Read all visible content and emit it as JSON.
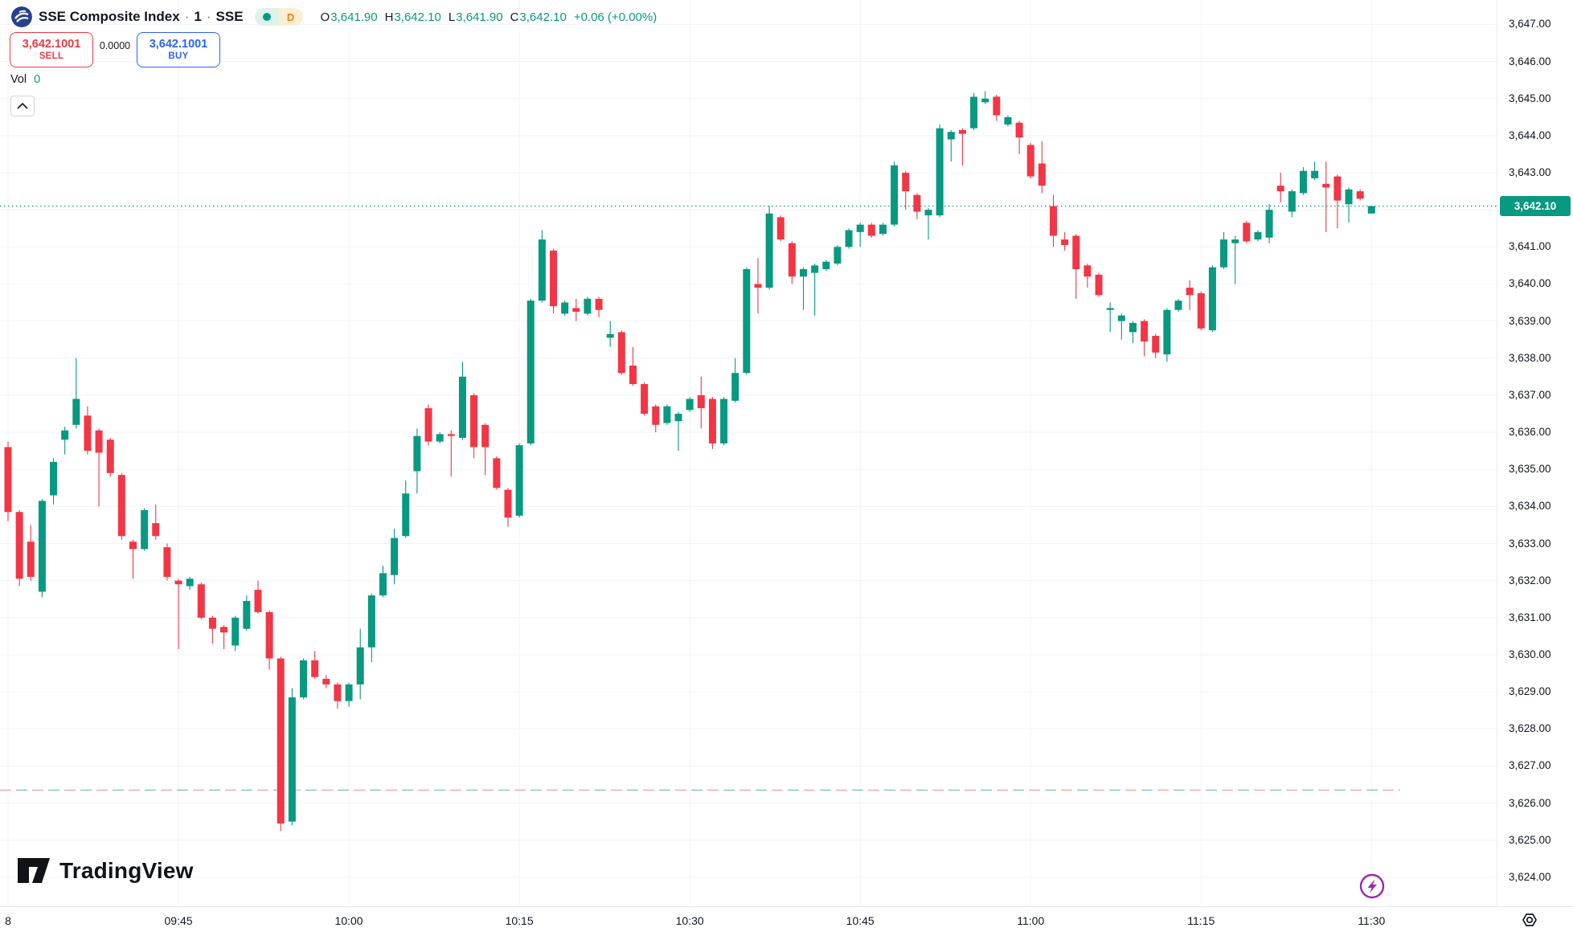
{
  "colors": {
    "up": "#089981",
    "down": "#f23645",
    "buy_blue": "#2962ff",
    "sell_red": "#f23645",
    "badge_bg": "#089981",
    "grid": "#f0f3fa",
    "flash_purple": "#9c27b0",
    "logo_navy": "#26418f",
    "dashed_red": "#f2a6aa",
    "dashed_teal": "#7fc6cb"
  },
  "header": {
    "segments": [
      "SSE Composite Index",
      "·",
      "1",
      "·",
      "SSE"
    ],
    "interval_badge": "D",
    "ohlc": {
      "o_label": "O",
      "o": "3,641.90",
      "h_label": "H",
      "h": "3,642.10",
      "l_label": "L",
      "l": "3,641.90",
      "c_label": "C",
      "c": "3,642.10",
      "change": "+0.06 (+0.00%)"
    }
  },
  "trade_panel": {
    "sell_price": "3,642.1001",
    "sell_label": "SELL",
    "spread": "0.0000",
    "buy_price": "3,642.1001",
    "buy_label": "BUY"
  },
  "volume": {
    "label": "Vol",
    "value": "0"
  },
  "watermark": {
    "text": "TradingView"
  },
  "price_axis": {
    "labels": [
      "3,647.00",
      "3,646.00",
      "3,645.00",
      "3,644.00",
      "3,643.00",
      "3,642.00",
      "3,641.00",
      "3,640.00",
      "3,639.00",
      "3,638.00",
      "3,637.00",
      "3,636.00",
      "3,635.00",
      "3,634.00",
      "3,633.00",
      "3,632.00",
      "3,631.00",
      "3,630.00",
      "3,629.00",
      "3,628.00",
      "3,627.00",
      "3,626.00",
      "3,625.00",
      "3,624.00"
    ],
    "current_price": "3,642.10"
  },
  "time_axis": {
    "labels": [
      {
        "t": "8",
        "m": 0
      },
      {
        "t": "09:45",
        "m": 15
      },
      {
        "t": "10:00",
        "m": 30
      },
      {
        "t": "10:15",
        "m": 45
      },
      {
        "t": "10:30",
        "m": 60
      },
      {
        "t": "10:45",
        "m": 75
      },
      {
        "t": "11:00",
        "m": 90
      },
      {
        "t": "11:15",
        "m": 105
      },
      {
        "t": "11:30",
        "m": 120
      }
    ]
  },
  "chart_data": {
    "type": "candlestick",
    "title": "SSE Composite Index, 1 minute, SSE",
    "interval_minutes": 1,
    "start_time": "09:30",
    "end_time": "11:30",
    "ylim": [
      3624,
      3647
    ],
    "grid": true,
    "price_line_value": 3642.1,
    "dashed_level_value": 3626.35,
    "last_candle_ohlc": {
      "open": 3641.9,
      "high": 3642.1,
      "low": 3641.9,
      "close": 3642.1
    },
    "session_high": 3645.2,
    "session_low": 3625.25,
    "candles": [
      [
        3635.6,
        3635.75,
        3633.6,
        3633.85
      ],
      [
        3633.85,
        3633.9,
        3631.85,
        3632.05
      ],
      [
        3633.05,
        3633.5,
        3632.0,
        3632.1
      ],
      [
        3631.7,
        3634.2,
        3631.55,
        3634.15
      ],
      [
        3634.3,
        3635.3,
        3634.05,
        3635.2
      ],
      [
        3635.8,
        3636.15,
        3635.4,
        3636.05
      ],
      [
        3636.2,
        3638.0,
        3636.1,
        3636.9
      ],
      [
        3636.45,
        3636.7,
        3635.4,
        3635.5
      ],
      [
        3636.05,
        3636.1,
        3634.0,
        3635.45
      ],
      [
        3635.8,
        3635.85,
        3634.8,
        3634.9
      ],
      [
        3634.85,
        3634.9,
        3633.1,
        3633.2
      ],
      [
        3633.05,
        3633.1,
        3632.05,
        3632.85
      ],
      [
        3632.85,
        3633.95,
        3632.8,
        3633.9
      ],
      [
        3633.55,
        3634.05,
        3633.1,
        3633.2
      ],
      [
        3632.9,
        3633.0,
        3632.0,
        3632.1
      ],
      [
        3632.0,
        3632.05,
        3630.15,
        3631.9
      ],
      [
        3631.85,
        3632.1,
        3631.75,
        3632.05
      ],
      [
        3631.9,
        3631.95,
        3630.95,
        3631.0
      ],
      [
        3631.0,
        3631.05,
        3630.3,
        3630.7
      ],
      [
        3630.75,
        3630.8,
        3630.15,
        3630.6
      ],
      [
        3630.25,
        3631.05,
        3630.1,
        3631.0
      ],
      [
        3630.7,
        3631.6,
        3630.65,
        3631.45
      ],
      [
        3631.75,
        3632.0,
        3631.1,
        3631.15
      ],
      [
        3631.15,
        3631.2,
        3629.6,
        3629.9
      ],
      [
        3629.9,
        3629.95,
        3625.25,
        3625.45
      ],
      [
        3625.5,
        3629.1,
        3625.4,
        3628.85
      ],
      [
        3628.85,
        3629.9,
        3628.8,
        3629.85
      ],
      [
        3629.85,
        3630.1,
        3629.35,
        3629.4
      ],
      [
        3629.35,
        3629.45,
        3629.1,
        3629.2
      ],
      [
        3629.2,
        3629.25,
        3628.55,
        3628.75
      ],
      [
        3628.75,
        3629.25,
        3628.6,
        3629.2
      ],
      [
        3629.2,
        3630.7,
        3628.8,
        3630.2
      ],
      [
        3630.2,
        3631.65,
        3629.8,
        3631.6
      ],
      [
        3631.6,
        3632.4,
        3631.55,
        3632.2
      ],
      [
        3632.15,
        3633.4,
        3631.9,
        3633.15
      ],
      [
        3633.2,
        3634.7,
        3633.15,
        3634.35
      ],
      [
        3634.95,
        3636.1,
        3634.35,
        3635.9
      ],
      [
        3636.65,
        3636.75,
        3635.65,
        3635.75
      ],
      [
        3635.75,
        3636.0,
        3635.7,
        3635.95
      ],
      [
        3635.95,
        3636.05,
        3634.8,
        3635.9
      ],
      [
        3635.85,
        3637.9,
        3635.8,
        3637.5
      ],
      [
        3637.0,
        3637.05,
        3635.3,
        3635.6
      ],
      [
        3636.2,
        3636.25,
        3634.85,
        3635.6
      ],
      [
        3635.3,
        3635.35,
        3634.45,
        3634.5
      ],
      [
        3634.45,
        3634.5,
        3633.45,
        3633.7
      ],
      [
        3633.75,
        3635.7,
        3633.7,
        3635.65
      ],
      [
        3635.7,
        3639.6,
        3635.65,
        3639.55
      ],
      [
        3639.55,
        3641.45,
        3639.5,
        3641.2
      ],
      [
        3640.9,
        3640.95,
        3639.2,
        3639.4
      ],
      [
        3639.2,
        3639.55,
        3639.15,
        3639.5
      ],
      [
        3639.35,
        3639.6,
        3639.0,
        3639.25
      ],
      [
        3639.2,
        3639.65,
        3639.15,
        3639.6
      ],
      [
        3639.6,
        3639.65,
        3639.1,
        3639.3
      ],
      [
        3638.55,
        3639.0,
        3638.3,
        3638.65
      ],
      [
        3638.7,
        3638.75,
        3637.55,
        3637.6
      ],
      [
        3637.8,
        3638.3,
        3637.25,
        3637.3
      ],
      [
        3637.3,
        3637.35,
        3636.45,
        3636.5
      ],
      [
        3636.7,
        3636.75,
        3636.0,
        3636.2
      ],
      [
        3636.25,
        3636.75,
        3636.2,
        3636.7
      ],
      [
        3636.3,
        3636.55,
        3635.5,
        3636.5
      ],
      [
        3636.6,
        3636.95,
        3636.55,
        3636.9
      ],
      [
        3637.0,
        3637.5,
        3636.1,
        3636.65
      ],
      [
        3636.9,
        3636.95,
        3635.55,
        3635.7
      ],
      [
        3635.7,
        3636.95,
        3635.65,
        3636.9
      ],
      [
        3636.85,
        3638.0,
        3636.8,
        3637.6
      ],
      [
        3637.6,
        3640.45,
        3637.55,
        3640.4
      ],
      [
        3640.0,
        3640.7,
        3639.2,
        3639.9
      ],
      [
        3639.9,
        3642.1,
        3639.85,
        3641.9
      ],
      [
        3641.8,
        3641.85,
        3641.15,
        3641.2
      ],
      [
        3641.1,
        3641.15,
        3640.0,
        3640.2
      ],
      [
        3640.2,
        3640.45,
        3639.3,
        3640.4
      ],
      [
        3640.3,
        3640.55,
        3639.15,
        3640.5
      ],
      [
        3640.4,
        3640.65,
        3640.35,
        3640.6
      ],
      [
        3640.55,
        3641.05,
        3640.5,
        3641.0
      ],
      [
        3641.0,
        3641.5,
        3640.95,
        3641.45
      ],
      [
        3641.4,
        3641.65,
        3641.0,
        3641.6
      ],
      [
        3641.6,
        3641.65,
        3641.25,
        3641.3
      ],
      [
        3641.35,
        3641.65,
        3641.3,
        3641.6
      ],
      [
        3641.6,
        3643.3,
        3641.55,
        3643.2
      ],
      [
        3643.0,
        3643.05,
        3642.0,
        3642.5
      ],
      [
        3642.4,
        3642.45,
        3641.75,
        3641.95
      ],
      [
        3641.85,
        3642.05,
        3641.2,
        3642.0
      ],
      [
        3641.85,
        3644.3,
        3641.8,
        3644.2
      ],
      [
        3643.9,
        3644.15,
        3643.3,
        3644.1
      ],
      [
        3644.15,
        3644.2,
        3643.2,
        3644.05
      ],
      [
        3644.2,
        3645.15,
        3644.15,
        3645.05
      ],
      [
        3644.9,
        3645.2,
        3644.85,
        3645.0
      ],
      [
        3645.05,
        3645.1,
        3644.4,
        3644.55
      ],
      [
        3644.3,
        3644.55,
        3644.25,
        3644.5
      ],
      [
        3644.35,
        3644.4,
        3643.5,
        3643.95
      ],
      [
        3643.75,
        3643.8,
        3642.85,
        3642.9
      ],
      [
        3643.25,
        3643.85,
        3642.45,
        3642.65
      ],
      [
        3642.1,
        3642.4,
        3641.0,
        3641.3
      ],
      [
        3641.2,
        3641.4,
        3640.9,
        3641.05
      ],
      [
        3641.3,
        3641.35,
        3639.6,
        3640.4
      ],
      [
        3640.5,
        3640.55,
        3639.9,
        3640.2
      ],
      [
        3640.25,
        3640.3,
        3639.65,
        3639.7
      ],
      [
        3639.3,
        3639.5,
        3638.7,
        3639.35
      ],
      [
        3639.0,
        3639.2,
        3638.5,
        3639.15
      ],
      [
        3638.7,
        3639.0,
        3638.4,
        3638.95
      ],
      [
        3639.0,
        3639.05,
        3638.05,
        3638.45
      ],
      [
        3638.6,
        3638.65,
        3638.0,
        3638.15
      ],
      [
        3638.1,
        3639.35,
        3637.9,
        3639.3
      ],
      [
        3639.3,
        3639.6,
        3639.25,
        3639.55
      ],
      [
        3639.9,
        3640.1,
        3639.3,
        3639.7
      ],
      [
        3639.75,
        3639.8,
        3638.75,
        3638.8
      ],
      [
        3638.75,
        3640.5,
        3638.7,
        3640.45
      ],
      [
        3640.45,
        3641.4,
        3640.4,
        3641.2
      ],
      [
        3641.1,
        3641.3,
        3640.0,
        3641.2
      ],
      [
        3641.65,
        3641.7,
        3641.1,
        3641.15
      ],
      [
        3641.2,
        3641.45,
        3641.15,
        3641.4
      ],
      [
        3641.25,
        3642.15,
        3641.1,
        3642.0
      ],
      [
        3642.65,
        3643.0,
        3642.2,
        3642.5
      ],
      [
        3641.95,
        3642.55,
        3641.8,
        3642.5
      ],
      [
        3642.45,
        3643.15,
        3642.4,
        3643.05
      ],
      [
        3642.85,
        3643.3,
        3642.8,
        3643.05
      ],
      [
        3642.7,
        3643.3,
        3641.4,
        3642.6
      ],
      [
        3642.9,
        3642.95,
        3641.5,
        3642.25
      ],
      [
        3642.15,
        3642.6,
        3641.65,
        3642.55
      ],
      [
        3642.5,
        3642.55,
        3642.25,
        3642.3
      ],
      [
        3641.9,
        3642.1,
        3641.9,
        3642.1
      ]
    ]
  }
}
